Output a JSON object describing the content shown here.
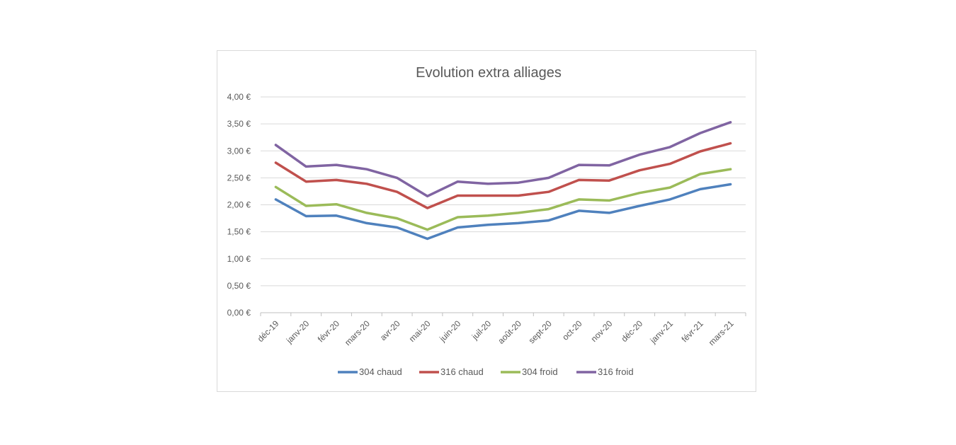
{
  "chart_data": {
    "type": "line",
    "title": "Evolution extra alliages",
    "xlabel": "",
    "ylabel": "",
    "ylim": [
      0,
      4
    ],
    "yticks": [
      "0,00 €",
      "0,50 €",
      "1,00 €",
      "1,50 €",
      "2,00 €",
      "2,50 €",
      "3,00 €",
      "3,50 €",
      "4,00 €"
    ],
    "grid": true,
    "legend_position": "bottom",
    "categories": [
      "déc-19",
      "janv-20",
      "févr-20",
      "mars-20",
      "avr-20",
      "mai-20",
      "juin-20",
      "juil-20",
      "août-20",
      "sept-20",
      "oct-20",
      "nov-20",
      "déc-20",
      "janv-21",
      "févr-21",
      "mars-21"
    ],
    "series": [
      {
        "name": "304 chaud",
        "color": "#4f81bd",
        "values": [
          2.1,
          1.79,
          1.8,
          1.66,
          1.58,
          1.37,
          1.58,
          1.63,
          1.66,
          1.71,
          1.89,
          1.85,
          1.98,
          2.1,
          2.29,
          2.38
        ]
      },
      {
        "name": "316 chaud",
        "color": "#c0504d",
        "values": [
          2.78,
          2.43,
          2.46,
          2.39,
          2.24,
          1.94,
          2.17,
          2.17,
          2.17,
          2.24,
          2.46,
          2.45,
          2.64,
          2.76,
          2.99,
          3.14
        ]
      },
      {
        "name": "304 froid",
        "color": "#9bbb59",
        "values": [
          2.33,
          1.98,
          2.01,
          1.85,
          1.75,
          1.54,
          1.77,
          1.8,
          1.85,
          1.92,
          2.1,
          2.08,
          2.22,
          2.32,
          2.57,
          2.66
        ]
      },
      {
        "name": "316 froid",
        "color": "#8064a2",
        "values": [
          3.11,
          2.71,
          2.74,
          2.66,
          2.5,
          2.16,
          2.43,
          2.39,
          2.41,
          2.5,
          2.74,
          2.73,
          2.93,
          3.07,
          3.33,
          3.53
        ]
      }
    ]
  }
}
